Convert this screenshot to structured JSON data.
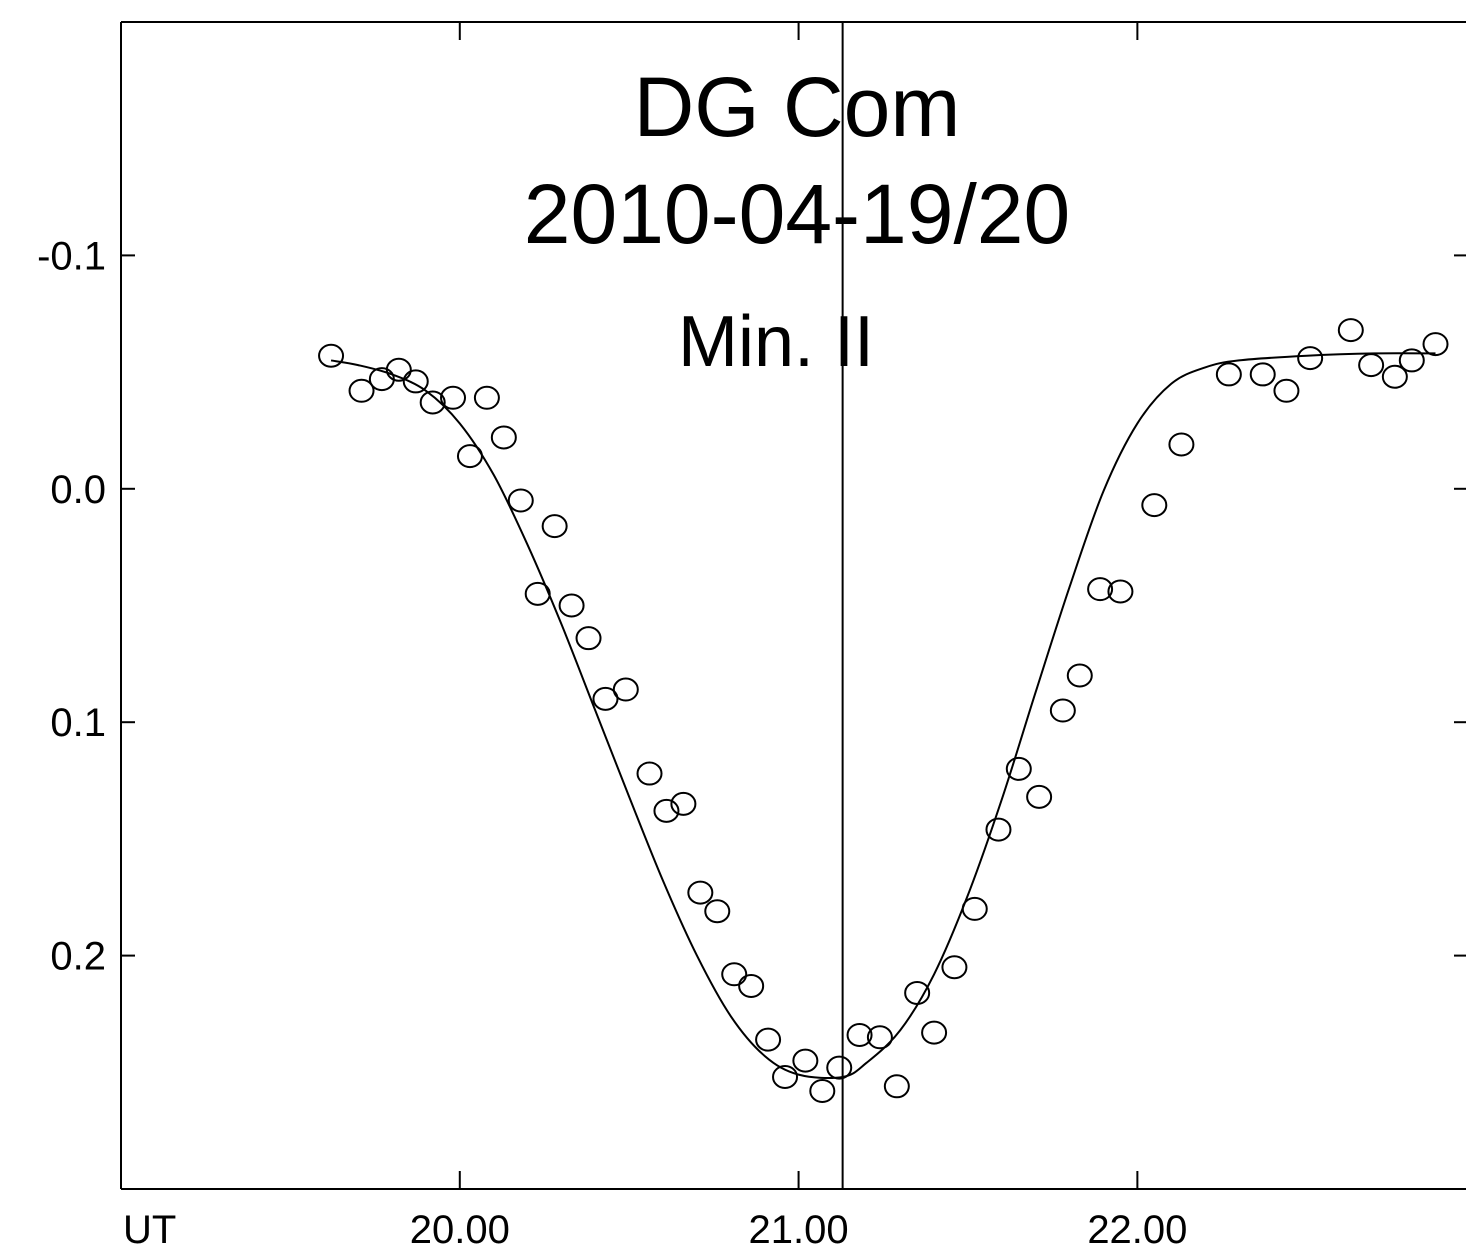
{
  "chart_data": {
    "type": "scatter",
    "title": "DG Com",
    "date": "2010-04-19/20",
    "annotation": "Min. II",
    "xlabel": "UT",
    "ylabel": "",
    "xlim": [
      19.0,
      22.97
    ],
    "ylim": [
      -0.2,
      0.3
    ],
    "y_inverted": true,
    "grid": false,
    "x_ticks": [
      {
        "value": 20.0,
        "label": "20.00"
      },
      {
        "value": 21.0,
        "label": "21.00"
      },
      {
        "value": 22.0,
        "label": "22.00"
      }
    ],
    "y_ticks": [
      {
        "value": -0.1,
        "label": "-0.1"
      },
      {
        "value": 0.0,
        "label": "0.0"
      },
      {
        "value": 0.1,
        "label": "0.1"
      },
      {
        "value": 0.2,
        "label": "0.2"
      }
    ],
    "minimum_time": 21.13,
    "series": [
      {
        "kind": "observations",
        "points": [
          [
            19.62,
            -0.057
          ],
          [
            19.71,
            -0.042
          ],
          [
            19.77,
            -0.047
          ],
          [
            19.82,
            -0.051
          ],
          [
            19.87,
            -0.046
          ],
          [
            19.92,
            -0.037
          ],
          [
            19.98,
            -0.039
          ],
          [
            20.03,
            -0.014
          ],
          [
            20.08,
            -0.039
          ],
          [
            20.13,
            -0.022
          ],
          [
            20.18,
            0.005
          ],
          [
            20.23,
            0.045
          ],
          [
            20.28,
            0.016
          ],
          [
            20.33,
            0.05
          ],
          [
            20.38,
            0.064
          ],
          [
            20.43,
            0.09
          ],
          [
            20.49,
            0.086
          ],
          [
            20.56,
            0.122
          ],
          [
            20.61,
            0.138
          ],
          [
            20.66,
            0.135
          ],
          [
            20.71,
            0.173
          ],
          [
            20.76,
            0.181
          ],
          [
            20.81,
            0.208
          ],
          [
            20.86,
            0.213
          ],
          [
            20.91,
            0.236
          ],
          [
            20.96,
            0.252
          ],
          [
            21.02,
            0.245
          ],
          [
            21.07,
            0.258
          ],
          [
            21.12,
            0.248
          ],
          [
            21.18,
            0.234
          ],
          [
            21.24,
            0.235
          ],
          [
            21.29,
            0.256
          ],
          [
            21.35,
            0.216
          ],
          [
            21.4,
            0.233
          ],
          [
            21.46,
            0.205
          ],
          [
            21.52,
            0.18
          ],
          [
            21.59,
            0.146
          ],
          [
            21.65,
            0.12
          ],
          [
            21.71,
            0.132
          ],
          [
            21.78,
            0.095
          ],
          [
            21.83,
            0.08
          ],
          [
            21.89,
            0.043
          ],
          [
            21.95,
            0.044
          ],
          [
            22.05,
            0.007
          ],
          [
            22.13,
            -0.019
          ],
          [
            22.27,
            -0.049
          ],
          [
            22.37,
            -0.049
          ],
          [
            22.44,
            -0.042
          ],
          [
            22.51,
            -0.056
          ],
          [
            22.63,
            -0.068
          ],
          [
            22.69,
            -0.053
          ],
          [
            22.76,
            -0.048
          ],
          [
            22.81,
            -0.055
          ],
          [
            22.88,
            -0.062
          ]
        ]
      },
      {
        "kind": "fit",
        "points": [
          [
            19.62,
            -0.055
          ],
          [
            19.7,
            -0.053
          ],
          [
            19.8,
            -0.049
          ],
          [
            19.9,
            -0.042
          ],
          [
            20.0,
            -0.028
          ],
          [
            20.1,
            -0.006
          ],
          [
            20.2,
            0.024
          ],
          [
            20.3,
            0.058
          ],
          [
            20.4,
            0.095
          ],
          [
            20.5,
            0.132
          ],
          [
            20.6,
            0.168
          ],
          [
            20.7,
            0.2
          ],
          [
            20.8,
            0.226
          ],
          [
            20.9,
            0.243
          ],
          [
            21.0,
            0.251
          ],
          [
            21.13,
            0.252
          ],
          [
            21.2,
            0.246
          ],
          [
            21.3,
            0.232
          ],
          [
            21.4,
            0.208
          ],
          [
            21.5,
            0.174
          ],
          [
            21.6,
            0.133
          ],
          [
            21.7,
            0.087
          ],
          [
            21.8,
            0.042
          ],
          [
            21.9,
            0.001
          ],
          [
            22.0,
            -0.028
          ],
          [
            22.1,
            -0.045
          ],
          [
            22.2,
            -0.052
          ],
          [
            22.3,
            -0.055
          ],
          [
            22.5,
            -0.057
          ],
          [
            22.7,
            -0.058
          ],
          [
            22.88,
            -0.058
          ]
        ]
      }
    ]
  }
}
